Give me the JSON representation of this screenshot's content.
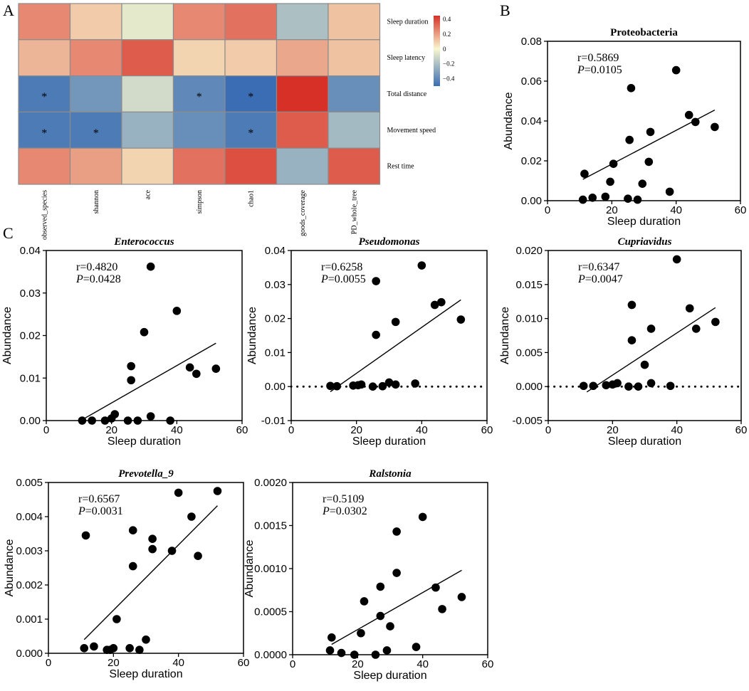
{
  "panel_labels": [
    "A",
    "B",
    "C"
  ],
  "chart_data": [
    {
      "id": "A",
      "type": "heatmap",
      "rows": [
        "Sleep duration",
        "Sleep latency",
        "Total distance",
        "Movement speed",
        "Rest time"
      ],
      "columns": [
        "observed_species",
        "shannon",
        "ace",
        "simpson",
        "chao1",
        "goods_coverage",
        "PD_whole_tree"
      ],
      "values": [
        [
          0.25,
          0.1,
          -0.05,
          0.25,
          0.3,
          -0.2,
          0.12
        ],
        [
          0.15,
          0.25,
          0.35,
          0.08,
          0.1,
          0.18,
          0.12
        ],
        [
          -0.45,
          -0.35,
          -0.1,
          -0.4,
          -0.5,
          0.45,
          -0.38
        ],
        [
          -0.45,
          -0.45,
          -0.25,
          -0.38,
          -0.45,
          0.35,
          -0.22
        ],
        [
          0.25,
          0.2,
          0.08,
          0.3,
          0.38,
          -0.25,
          0.35
        ]
      ],
      "significance": [
        [
          "",
          "",
          "",
          "",
          "",
          "",
          ""
        ],
        [
          "",
          "",
          "",
          "",
          "",
          "",
          ""
        ],
        [
          "*",
          "",
          "",
          "*",
          "*",
          "",
          ""
        ],
        [
          "*",
          "*",
          "",
          "",
          "*",
          "",
          ""
        ],
        [
          "",
          "",
          "",
          "",
          "",
          "",
          ""
        ]
      ],
      "colorbar": {
        "ticks": [
          "0.4",
          "0.2",
          "0",
          "−0.2",
          "−0.4"
        ],
        "range": [
          -0.5,
          0.45
        ]
      },
      "colors": {
        "neg": "#3a6db3",
        "mid": "#f8f7cf",
        "pos": "#d73027"
      }
    },
    {
      "id": "B",
      "type": "scatter",
      "title": "Proteobacteria",
      "title_italic": false,
      "xlabel": "Sleep duration",
      "ylabel": "Abundance",
      "xlim": [
        0,
        60
      ],
      "ylim": [
        0,
        0.08
      ],
      "xticks": [
        "0",
        "20",
        "40",
        "60"
      ],
      "yticks": [
        "0.00",
        "0.02",
        "0.04",
        "0.06",
        "0.08"
      ],
      "stat_r": "r=0.5869",
      "stat_p_label": "P",
      "stat_p_value": "=0.0105",
      "x": [
        11,
        11.5,
        14,
        18,
        19.5,
        20.5,
        25,
        25.5,
        26,
        28,
        29.5,
        31.5,
        32,
        38,
        40,
        44,
        46,
        52
      ],
      "y": [
        0.0005,
        0.0135,
        0.0015,
        0.002,
        0.0095,
        0.0185,
        0.001,
        0.0305,
        0.0565,
        0.0005,
        0.0085,
        0.0195,
        0.0345,
        0.0045,
        0.0655,
        0.043,
        0.0395,
        0.037
      ],
      "fit": [
        [
          11,
          0.0107
        ],
        [
          52,
          0.0455
        ]
      ],
      "zero_line": false
    },
    {
      "id": "C1",
      "type": "scatter",
      "title": "Enterococcus",
      "title_italic": true,
      "xlabel": "Sleep duration",
      "ylabel": "Abundance",
      "xlim": [
        0,
        60
      ],
      "ylim": [
        0,
        0.04
      ],
      "xticks": [
        "0",
        "20",
        "40",
        "60"
      ],
      "yticks": [
        "0.00",
        "0.01",
        "0.02",
        "0.03",
        "0.04"
      ],
      "stat_r": "r=0.4820",
      "stat_p_label": "P",
      "stat_p_value": "=0.0428",
      "x": [
        11,
        14,
        18,
        20,
        21,
        25,
        26,
        26,
        28,
        30,
        32,
        32,
        38,
        40,
        44,
        46,
        52
      ],
      "y": [
        0.0,
        0.0,
        0.0,
        0.0005,
        0.0015,
        0.0,
        0.0095,
        0.0128,
        0.0,
        0.0208,
        0.0362,
        0.001,
        0.0,
        0.0258,
        0.0125,
        0.011,
        0.0122
      ],
      "fit": [
        [
          11,
          0.0002
        ],
        [
          52,
          0.0182
        ]
      ],
      "zero_line": false
    },
    {
      "id": "C2",
      "type": "scatter",
      "title": "Pseudomonas",
      "title_italic": true,
      "xlabel": "Sleep duration",
      "ylabel": "Abundance",
      "xlim": [
        0,
        60
      ],
      "ylim": [
        -0.01,
        0.04
      ],
      "xticks": [
        "0",
        "20",
        "40",
        "60"
      ],
      "yticks": [
        "-0.01",
        "0.00",
        "0.01",
        "0.02",
        "0.03",
        "0.04"
      ],
      "stat_r": "r=0.6258",
      "stat_p_label": "P",
      "stat_p_value": "=0.0055",
      "x": [
        12,
        14,
        19,
        20.5,
        21.5,
        25,
        26,
        26,
        28,
        30,
        32,
        32,
        38,
        40,
        44,
        46,
        52
      ],
      "y": [
        0.0002,
        0.0001,
        0.0003,
        0.0004,
        0.0006,
        0.0,
        0.0152,
        0.031,
        0.0001,
        0.0012,
        0.019,
        0.0006,
        0.0009,
        0.0356,
        0.024,
        0.0248,
        0.0197
      ],
      "fit": [
        [
          12,
          -0.0015
        ],
        [
          52,
          0.0255
        ]
      ],
      "zero_line": true
    },
    {
      "id": "C3",
      "type": "scatter",
      "title": "Cupriavidus",
      "title_italic": true,
      "xlabel": "Sleep duration",
      "ylabel": "Abundance",
      "xlim": [
        0,
        60
      ],
      "ylim": [
        -0.005,
        0.02
      ],
      "xticks": [
        "0",
        "20",
        "40",
        "60"
      ],
      "yticks": [
        "-0.005",
        "0.000",
        "0.005",
        "0.010",
        "0.015",
        "0.020"
      ],
      "stat_r": "r=0.6347",
      "stat_p_label": "P",
      "stat_p_value": "=0.0047",
      "x": [
        11,
        14,
        18,
        20,
        21.5,
        25,
        26,
        26,
        28,
        30,
        32,
        32,
        38,
        40,
        44,
        46,
        52
      ],
      "y": [
        0.0001,
        0.0001,
        0.0002,
        0.0003,
        0.0005,
        0.0,
        0.0068,
        0.012,
        0.0,
        0.0032,
        0.0085,
        0.0005,
        0.0001,
        0.0187,
        0.0115,
        0.0085,
        0.0095
      ],
      "fit": [
        [
          12,
          -0.0008
        ],
        [
          52,
          0.0116
        ]
      ],
      "zero_line": true
    },
    {
      "id": "C4",
      "type": "scatter",
      "title": "Prevotella_9",
      "title_italic": true,
      "xlabel": "Sleep duration",
      "ylabel": "Abundance",
      "xlim": [
        0,
        60
      ],
      "ylim": [
        0,
        0.005
      ],
      "xticks": [
        "0",
        "20",
        "40",
        "60"
      ],
      "yticks": [
        "0.000",
        "0.001",
        "0.002",
        "0.003",
        "0.004",
        "0.005"
      ],
      "stat_r": "r=0.6567",
      "stat_p_label": "P",
      "stat_p_value": "=0.0031",
      "x": [
        11,
        11.5,
        14,
        18,
        19,
        20,
        21,
        25,
        26,
        26,
        28,
        30,
        32,
        32,
        38,
        40,
        44,
        46,
        52
      ],
      "y": [
        0.00015,
        0.00345,
        0.0002,
        0.0001,
        0.0001,
        0.00015,
        0.001,
        0.00015,
        0.00255,
        0.0036,
        0.0001,
        0.0004,
        0.00305,
        0.00335,
        0.003,
        0.0047,
        0.004,
        0.00285,
        0.00475
      ],
      "fit": [
        [
          11,
          0.0004
        ],
        [
          52,
          0.00432
        ]
      ],
      "zero_line": false
    },
    {
      "id": "C5",
      "type": "scatter",
      "title": "Ralstonia",
      "title_italic": true,
      "xlabel": "Sleep duration",
      "ylabel": "Abundance",
      "xlim": [
        0,
        60
      ],
      "ylim": [
        0,
        0.002
      ],
      "xticks": [
        "0",
        "20",
        "40",
        "60"
      ],
      "yticks": [
        "0.0000",
        "0.0005",
        "0.0010",
        "0.0015",
        "0.0020"
      ],
      "stat_r": "r=0.5109",
      "stat_p_label": "P",
      "stat_p_value": "=0.0302",
      "x": [
        11.5,
        12,
        15,
        19,
        21,
        22,
        25.5,
        27,
        27,
        29,
        30,
        32,
        32,
        38,
        40,
        44,
        46,
        52
      ],
      "y": [
        5e-05,
        0.0002,
        2e-05,
        0.0,
        0.00025,
        0.00062,
        0.0,
        0.00045,
        0.00079,
        5e-05,
        0.00033,
        0.00095,
        0.00143,
        9e-05,
        0.0016,
        0.00078,
        0.00053,
        0.00067
      ],
      "fit": [
        [
          12,
          0.00012
        ],
        [
          52,
          0.00098
        ]
      ],
      "zero_line": false
    }
  ]
}
